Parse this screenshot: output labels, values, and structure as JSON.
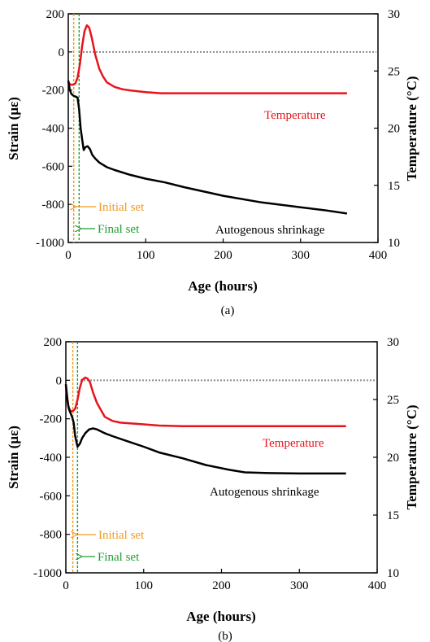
{
  "chart_data": [
    {
      "type": "line",
      "panel_label": "(a)",
      "xlabel": "Age (hours)",
      "ylabel": "Strain (με)",
      "y2label": "Temperature (°C)",
      "xlim": [
        0,
        400
      ],
      "ylim": [
        -1000,
        200
      ],
      "y2lim": [
        10,
        30
      ],
      "xticks": [
        0,
        100,
        200,
        300,
        400
      ],
      "yticks": [
        200,
        0,
        -200,
        -400,
        -600,
        -800,
        -1000
      ],
      "y2ticks": [
        30,
        25,
        20,
        15,
        10
      ],
      "zero_reference": true,
      "initial_set_hours": 7,
      "final_set_hours": 14,
      "series": [
        {
          "name": "Temperature",
          "axis": "right",
          "color": "#e8141b",
          "x": [
            0,
            3,
            6,
            9,
            12,
            15,
            18,
            21,
            24,
            27,
            30,
            35,
            40,
            45,
            50,
            60,
            70,
            80,
            100,
            120,
            150,
            200,
            250,
            300,
            360
          ],
          "y": [
            24.0,
            23.8,
            23.8,
            23.9,
            24.4,
            25.6,
            27.2,
            28.5,
            29.0,
            28.8,
            28.0,
            26.4,
            25.2,
            24.5,
            24.0,
            23.6,
            23.4,
            23.3,
            23.15,
            23.05,
            23.05,
            23.05,
            23.05,
            23.05,
            23.05
          ]
        },
        {
          "name": "Autogenous shrinkage",
          "axis": "left",
          "color": "#000000",
          "x": [
            0,
            2,
            4,
            6,
            8,
            10,
            12,
            14,
            16,
            18,
            20,
            22,
            25,
            28,
            31,
            35,
            40,
            50,
            60,
            80,
            100,
            125,
            150,
            200,
            250,
            300,
            330,
            360
          ],
          "y": [
            -150,
            -200,
            -220,
            -228,
            -232,
            -235,
            -240,
            -300,
            -400,
            -460,
            -515,
            -500,
            -495,
            -510,
            -540,
            -560,
            -580,
            -605,
            -620,
            -645,
            -665,
            -685,
            -710,
            -755,
            -790,
            -815,
            -830,
            -848
          ]
        }
      ],
      "annotations": [
        {
          "text": "Initial set",
          "color": "#f2991a"
        },
        {
          "text": "Final set",
          "color": "#1e9e2e"
        },
        {
          "text": "Temperature",
          "color": "#e8141b"
        },
        {
          "text": "Autogenous shrinkage",
          "color": "#000000"
        }
      ]
    },
    {
      "type": "line",
      "panel_label": "(b)",
      "xlabel": "Age (hours)",
      "ylabel": "Strain (με)",
      "y2label": "Temperature (°C)",
      "xlim": [
        0,
        400
      ],
      "ylim": [
        -1000,
        200
      ],
      "y2lim": [
        10,
        30
      ],
      "xticks": [
        0,
        100,
        200,
        300,
        400
      ],
      "yticks": [
        200,
        0,
        -200,
        -400,
        -600,
        -800,
        -1000
      ],
      "y2ticks": [
        30,
        25,
        20,
        15,
        10
      ],
      "zero_reference": true,
      "initial_set_hours": 9,
      "final_set_hours": 15,
      "series": [
        {
          "name": "Temperature",
          "axis": "right",
          "color": "#e8141b",
          "x": [
            0,
            3,
            6,
            9,
            12,
            15,
            18,
            21,
            25,
            28,
            31,
            35,
            40,
            50,
            60,
            70,
            80,
            100,
            120,
            150,
            200,
            250,
            300,
            360
          ],
          "y": [
            26.2,
            24.4,
            24.0,
            24.0,
            24.2,
            25.0,
            26.0,
            26.7,
            26.9,
            26.8,
            26.5,
            25.6,
            24.7,
            23.5,
            23.15,
            23.0,
            22.95,
            22.85,
            22.75,
            22.7,
            22.7,
            22.7,
            22.7,
            22.7
          ]
        },
        {
          "name": "Autogenous shrinkage",
          "axis": "left",
          "color": "#000000",
          "x": [
            0,
            2,
            4,
            6,
            8,
            10,
            12,
            15,
            18,
            21,
            25,
            30,
            35,
            40,
            50,
            60,
            80,
            100,
            120,
            150,
            180,
            210,
            230,
            260,
            300,
            360
          ],
          "y": [
            -20,
            -100,
            -150,
            -170,
            -190,
            -220,
            -290,
            -345,
            -330,
            -300,
            -275,
            -255,
            -250,
            -255,
            -275,
            -290,
            -318,
            -345,
            -375,
            -405,
            -440,
            -465,
            -478,
            -482,
            -484,
            -484
          ]
        }
      ],
      "annotations": [
        {
          "text": "Initial set",
          "color": "#f2991a"
        },
        {
          "text": "Final set",
          "color": "#1e9e2e"
        },
        {
          "text": "Temperature",
          "color": "#e8141b"
        },
        {
          "text": "Autogenous shrinkage",
          "color": "#000000"
        }
      ]
    }
  ]
}
